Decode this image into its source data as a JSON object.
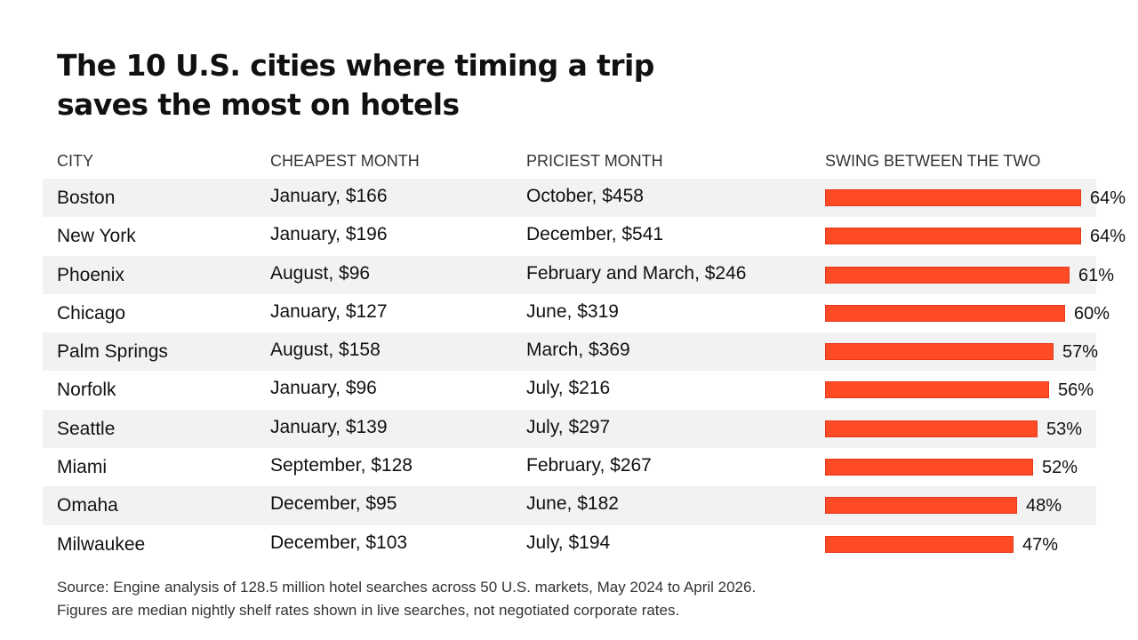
{
  "title_line1": "The 10 U.S. cities where timing a trip",
  "title_line2": "saves the most on hotels",
  "columns": {
    "city": "CITY",
    "cheapest": "CHEAPEST MONTH",
    "priciest": "PRICIEST MONTH",
    "swing": "SWING BETWEEN THE TWO"
  },
  "accent_color": "#ff4a26",
  "chart_data": {
    "type": "bar",
    "orientation": "horizontal",
    "title": "The 10 U.S. cities where timing a trip saves the most on hotels",
    "xlabel": "SWING BETWEEN THE TWO",
    "xlim": [
      0,
      64
    ],
    "categories": [
      "Boston",
      "New York",
      "Phoenix",
      "Chicago",
      "Palm Springs",
      "Norfolk",
      "Seattle",
      "Miami",
      "Omaha",
      "Milwaukee"
    ],
    "values": [
      64,
      64,
      61,
      60,
      57,
      56,
      53,
      52,
      48,
      47
    ],
    "value_labels": [
      "64%",
      "64%",
      "61%",
      "60%",
      "57%",
      "56%",
      "53%",
      "52%",
      "48%",
      "47%"
    ],
    "cheapest_month": [
      "January, $166",
      "January, $196",
      "August, $96",
      "January, $127",
      "August, $158",
      "January, $96",
      "January, $139",
      "September, $128",
      "December, $95",
      "December, $103"
    ],
    "priciest_month": [
      "October, $458",
      "December, $541",
      "February and March, $246",
      "June, $319",
      "March, $369",
      "July, $216",
      "July, $297",
      "February, $267",
      "June, $182",
      "July, $194"
    ]
  },
  "footnote_line1": "Source: Engine analysis of 128.5 million hotel searches across 50 U.S. markets, May 2024 to April 2026.",
  "footnote_line2": "Figures are median nightly shelf rates shown in live searches, not negotiated corporate rates."
}
